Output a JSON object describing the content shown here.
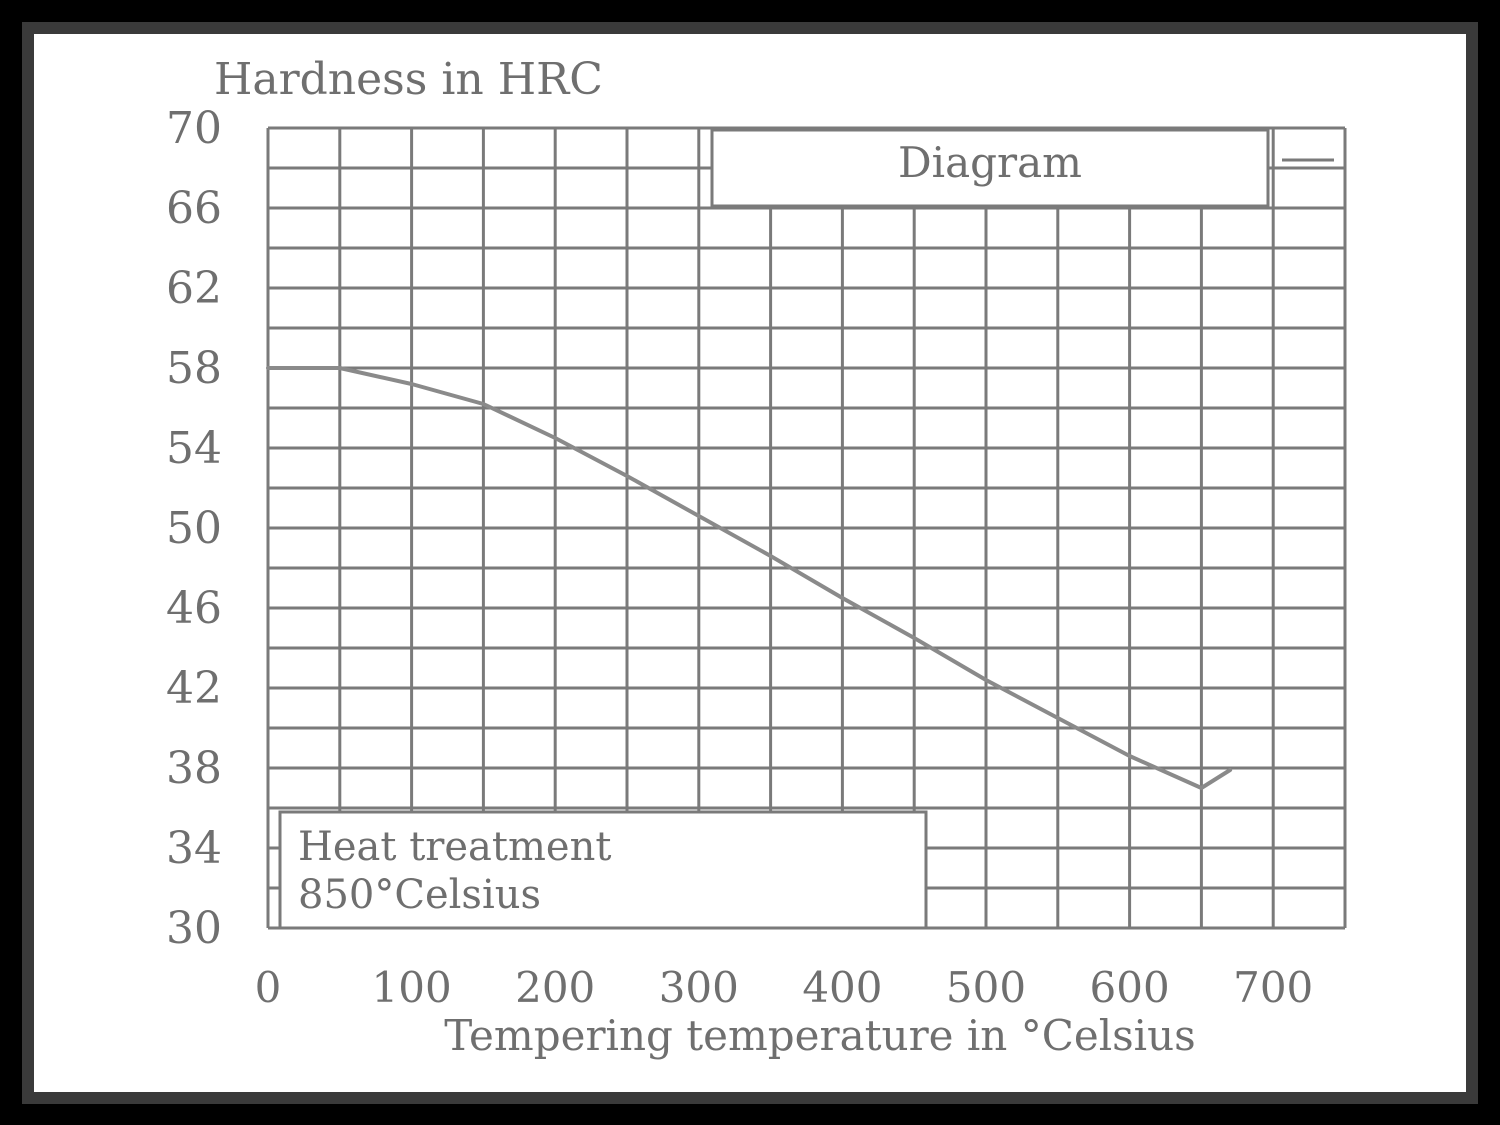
{
  "chart_data": {
    "type": "line",
    "title": "Diagram",
    "ylabel": "Hardness in HRC",
    "xlabel": "Tempering temperature in °Celsius",
    "annotation": [
      "Heat treatment",
      "850°Celsius"
    ],
    "y_ticks": [
      "70",
      "66",
      "62",
      "58",
      "54",
      "50",
      "46",
      "42",
      "38",
      "34",
      "30"
    ],
    "x_ticks": [
      "0",
      "100",
      "200",
      "300",
      "400",
      "500",
      "600",
      "700"
    ],
    "ylim": [
      30,
      70
    ],
    "xlim": [
      0,
      750
    ],
    "grid": true,
    "legend": "none",
    "line_color": "#8a8a8a",
    "series": [
      {
        "x": [
          0,
          50,
          100,
          150,
          200,
          250,
          300,
          350,
          400,
          450,
          500,
          550,
          600,
          650,
          670
        ],
        "values": [
          58,
          58,
          57.2,
          56.2,
          54.5,
          52.6,
          50.6,
          48.6,
          46.5,
          44.5,
          42.4,
          40.5,
          38.6,
          37.0,
          37.9
        ]
      }
    ]
  }
}
